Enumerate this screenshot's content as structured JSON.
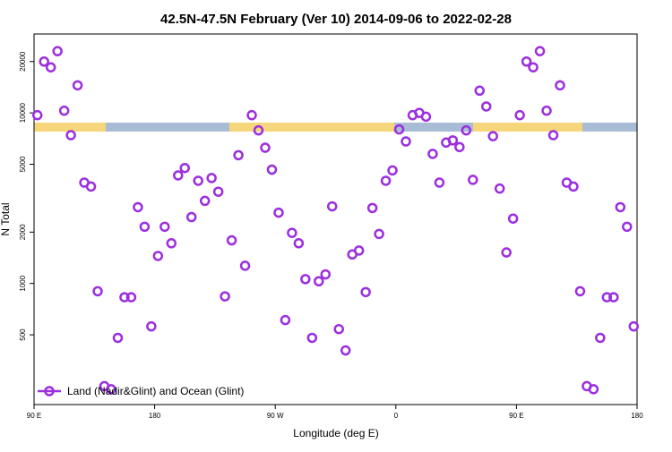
{
  "chart_data": {
    "type": "scatter",
    "title": "42.5N-47.5N February (Ver 10)   2014-09-06 to 2022-02-28",
    "x_label": "Longitude (deg E)",
    "y_label": "N Total",
    "log_y": true,
    "legend_position": "lower left",
    "xlim": [
      90,
      540
    ],
    "ylim": [
      195,
      29000
    ],
    "xticks": [
      {
        "value": 90,
        "label": "90 E"
      },
      180,
      {
        "value": 270,
        "label": "90 W"
      },
      {
        "value": 360,
        "label": "0"
      },
      {
        "value": 450,
        "label": "90 E"
      },
      {
        "value": 540,
        "label": "180"
      }
    ],
    "yticks": [
      500,
      1000,
      2000,
      5000,
      10000,
      20000
    ],
    "x": [
      92.5,
      97.5,
      102.5,
      107.5,
      112.5,
      117.5,
      122.5,
      127.5,
      132.5,
      137.5,
      142.5,
      147.5,
      152.5,
      157.5,
      162.5,
      167.5,
      172.5,
      177.5,
      182.5,
      187.5,
      192.5,
      197.5,
      202.5,
      207.5,
      212.5,
      217.5,
      222.5,
      227.5,
      232.5,
      237.5,
      242.5,
      247.5,
      252.5,
      257.5,
      262.5,
      267.5,
      272.5,
      277.5,
      282.5,
      287.5,
      292.5,
      297.5,
      302.5,
      307.5,
      312.5,
      317.5,
      322.5,
      327.5,
      332.5,
      337.5,
      342.5,
      347.5,
      352.5,
      357.5,
      362.5,
      367.5,
      372.5,
      377.5,
      382.5,
      387.5,
      392.5,
      397.5,
      402.5,
      407.5,
      412.5,
      417.5,
      422.5,
      427.5,
      432.5,
      437.5,
      442.5,
      447.5,
      452.5,
      457.5,
      462.5,
      467.5,
      472.5,
      477.5,
      482.5,
      487.5,
      492.5,
      497.5,
      502.5,
      507.5,
      512.5,
      517.5,
      522.5,
      527.5,
      532.5,
      537.5
    ],
    "series": [
      {
        "name": "Land (Nadir&Glint) and Ocean (Glint)",
        "color": "#9b2fe0",
        "values": [
          9700,
          20000,
          18500,
          23000,
          10300,
          7400,
          14500,
          3900,
          3700,
          900,
          250,
          240,
          480,
          830,
          830,
          2800,
          2150,
          560,
          1450,
          2150,
          1720,
          4300,
          4750,
          2450,
          4000,
          3050,
          4150,
          3450,
          840,
          1790,
          5650,
          1270,
          9700,
          7900,
          6250,
          4650,
          2600,
          610,
          1980,
          1720,
          1060,
          480,
          1030,
          1130,
          2830,
          540,
          405,
          1480,
          1560,
          890,
          2770,
          1950,
          4000,
          4600,
          8000,
          6800,
          9700,
          10000,
          9500,
          5750,
          3900,
          6700,
          6900,
          6300,
          7900,
          4050,
          13500,
          10900,
          7300,
          3600,
          1520,
          2400,
          9700,
          20000,
          18500,
          23000,
          10300,
          7400,
          14500,
          3900,
          3700,
          900,
          250,
          240,
          480,
          830,
          830,
          2800,
          2150,
          560
        ]
      }
    ]
  }
}
